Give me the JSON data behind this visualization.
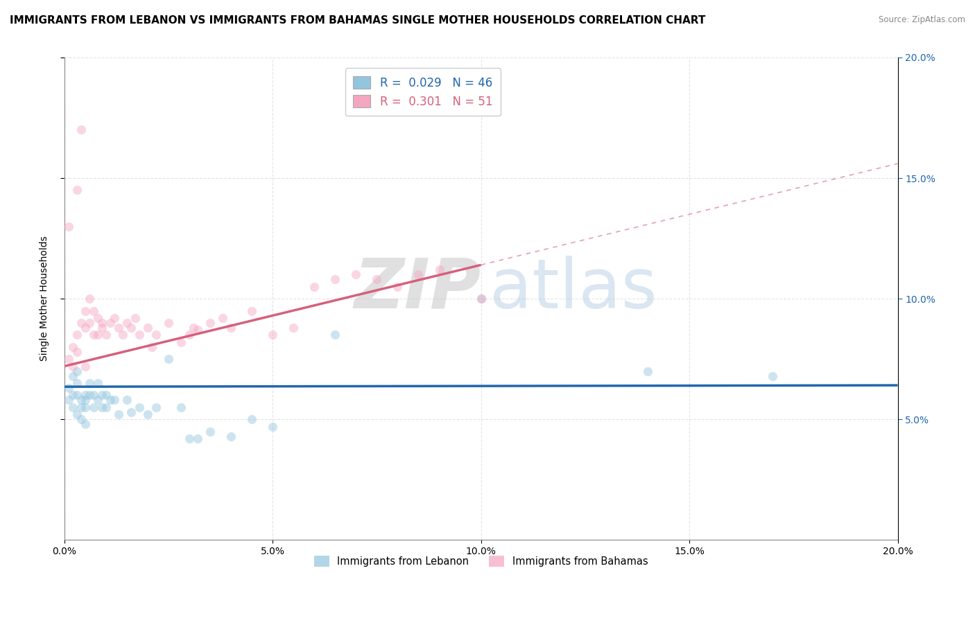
{
  "title": "IMMIGRANTS FROM LEBANON VS IMMIGRANTS FROM BAHAMAS SINGLE MOTHER HOUSEHOLDS CORRELATION CHART",
  "source": "Source: ZipAtlas.com",
  "ylabel": "Single Mother Households",
  "legend_label1": "Immigrants from Lebanon",
  "legend_label2": "Immigrants from Bahamas",
  "R1": 0.029,
  "N1": 46,
  "R2": 0.301,
  "N2": 51,
  "color1": "#92c5de",
  "color2": "#f4a6c0",
  "trendline1_color": "#2166ac",
  "trendline2_color": "#d6607a",
  "xlim": [
    0.0,
    0.2
  ],
  "ylim": [
    0.0,
    0.2
  ],
  "xticks": [
    0.0,
    0.05,
    0.1,
    0.15,
    0.2
  ],
  "yticks": [
    0.05,
    0.1,
    0.15,
    0.2
  ],
  "xtick_labels": [
    "0.0%",
    "5.0%",
    "10.0%",
    "15.0%",
    "20.0%"
  ],
  "ytick_labels_right": [
    "5.0%",
    "10.0%",
    "15.0%",
    "20.0%"
  ],
  "watermark_zip": "ZIP",
  "watermark_atlas": "atlas",
  "background_color": "#ffffff",
  "lebanon_x": [
    0.001,
    0.001,
    0.002,
    0.002,
    0.002,
    0.003,
    0.003,
    0.003,
    0.003,
    0.004,
    0.004,
    0.004,
    0.005,
    0.005,
    0.005,
    0.005,
    0.006,
    0.006,
    0.007,
    0.007,
    0.008,
    0.008,
    0.009,
    0.009,
    0.01,
    0.01,
    0.011,
    0.012,
    0.013,
    0.015,
    0.016,
    0.018,
    0.02,
    0.022,
    0.025,
    0.028,
    0.03,
    0.032,
    0.035,
    0.04,
    0.045,
    0.05,
    0.065,
    0.1,
    0.14,
    0.17
  ],
  "lebanon_y": [
    0.063,
    0.058,
    0.055,
    0.068,
    0.06,
    0.052,
    0.06,
    0.065,
    0.07,
    0.058,
    0.055,
    0.05,
    0.06,
    0.058,
    0.055,
    0.048,
    0.065,
    0.06,
    0.055,
    0.06,
    0.065,
    0.058,
    0.055,
    0.06,
    0.06,
    0.055,
    0.058,
    0.058,
    0.052,
    0.058,
    0.053,
    0.055,
    0.052,
    0.055,
    0.075,
    0.055,
    0.042,
    0.042,
    0.045,
    0.043,
    0.05,
    0.047,
    0.085,
    0.1,
    0.07,
    0.068
  ],
  "bahamas_x": [
    0.001,
    0.001,
    0.002,
    0.002,
    0.003,
    0.003,
    0.003,
    0.004,
    0.004,
    0.005,
    0.005,
    0.005,
    0.006,
    0.006,
    0.007,
    0.007,
    0.008,
    0.008,
    0.009,
    0.009,
    0.01,
    0.011,
    0.012,
    0.013,
    0.014,
    0.015,
    0.016,
    0.017,
    0.018,
    0.02,
    0.021,
    0.022,
    0.025,
    0.028,
    0.03,
    0.031,
    0.032,
    0.035,
    0.038,
    0.04,
    0.045,
    0.05,
    0.055,
    0.06,
    0.065,
    0.07,
    0.075,
    0.08,
    0.085,
    0.09,
    0.1
  ],
  "bahamas_y": [
    0.075,
    0.13,
    0.08,
    0.072,
    0.145,
    0.085,
    0.078,
    0.17,
    0.09,
    0.095,
    0.088,
    0.072,
    0.1,
    0.09,
    0.085,
    0.095,
    0.092,
    0.085,
    0.09,
    0.088,
    0.085,
    0.09,
    0.092,
    0.088,
    0.085,
    0.09,
    0.088,
    0.092,
    0.085,
    0.088,
    0.08,
    0.085,
    0.09,
    0.082,
    0.085,
    0.088,
    0.087,
    0.09,
    0.092,
    0.088,
    0.095,
    0.085,
    0.088,
    0.105,
    0.108,
    0.11,
    0.108,
    0.105,
    0.11,
    0.112,
    0.1
  ],
  "grid_color": "#dddddd",
  "title_fontsize": 11,
  "axis_label_fontsize": 10,
  "tick_fontsize": 10,
  "marker_size": 90,
  "marker_alpha": 0.45,
  "trendline1_intercept": 0.0635,
  "trendline1_slope": 0.003,
  "trendline2_intercept": 0.072,
  "trendline2_slope": 0.42
}
